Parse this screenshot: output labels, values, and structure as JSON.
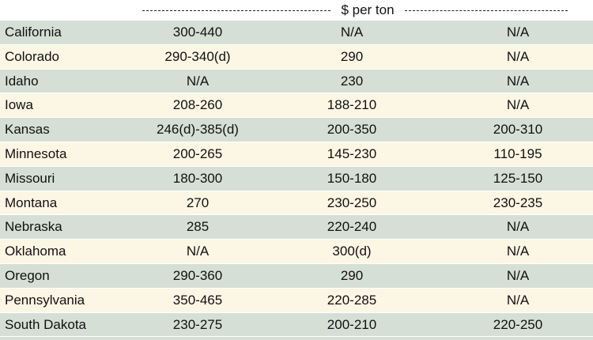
{
  "table": {
    "header": "$ per ton",
    "rows": [
      [
        "California",
        "300-440",
        "N/A",
        "N/A"
      ],
      [
        "Colorado",
        "290-340(d)",
        "290",
        "N/A"
      ],
      [
        "Idaho",
        "N/A",
        "230",
        "N/A"
      ],
      [
        "Iowa",
        "208-260",
        "188-210",
        "N/A"
      ],
      [
        "Kansas",
        "246(d)-385(d)",
        "200-350",
        "200-310"
      ],
      [
        "Minnesota",
        "200-265",
        "145-230",
        "110-195"
      ],
      [
        "Missouri",
        "180-300",
        "150-180",
        "125-150"
      ],
      [
        "Montana",
        "270",
        "230-250",
        "230-235"
      ],
      [
        "Nebraska",
        "285",
        "220-240",
        "N/A"
      ],
      [
        "Oklahoma",
        "N/A",
        "300(d)",
        "N/A"
      ],
      [
        "Oregon",
        "290-360",
        "290",
        "N/A"
      ],
      [
        "Pennsylvania",
        "350-465",
        "220-285",
        "N/A"
      ],
      [
        "South Dakota",
        "230-275",
        "200-210",
        "220-250"
      ]
    ]
  }
}
